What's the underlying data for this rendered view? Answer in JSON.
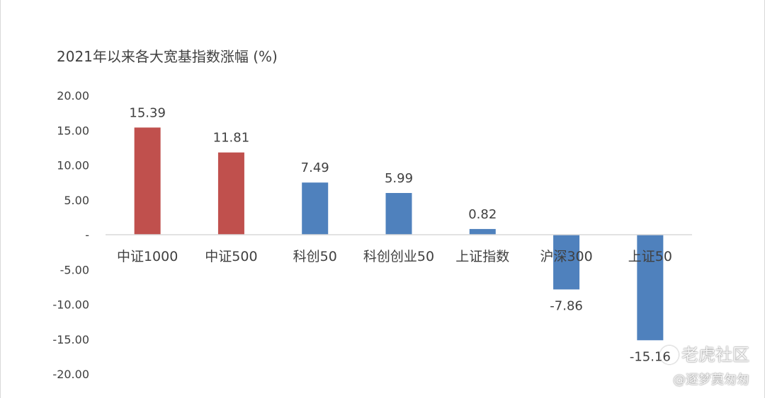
{
  "chart_data": {
    "type": "bar",
    "title": "2021年以来各大宽基指数涨幅 (%)",
    "categories": [
      "中证1000",
      "中证500",
      "科创50",
      "科创创业50",
      "上证指数",
      "沪深300",
      "上证50"
    ],
    "values": [
      15.39,
      11.81,
      7.49,
      5.99,
      0.82,
      -7.86,
      -15.16
    ],
    "value_labels": [
      "15.39",
      "11.81",
      "7.49",
      "5.99",
      "0.82",
      "-7.86",
      "-15.16"
    ],
    "bar_colors": [
      "#c0504d",
      "#c0504d",
      "#4f81bd",
      "#4f81bd",
      "#4f81bd",
      "#4f81bd",
      "#4f81bd"
    ],
    "ylim": [
      -20,
      20
    ],
    "yticks": [
      20,
      15,
      10,
      5,
      0,
      -5,
      -10,
      -15,
      -20
    ],
    "ytick_labels": [
      "20.00",
      "15.00",
      "10.00",
      "5.00",
      "-",
      "-5.00",
      "-10.00",
      "-15.00",
      "-20.00"
    ],
    "xlabel": "",
    "ylabel": "",
    "grid": false,
    "legend": "none"
  },
  "watermark": {
    "brand": "老虎社区",
    "user": "@逐梦莫匆匆"
  },
  "colors": {
    "axis": "#d9d9d9",
    "text": "#404040"
  }
}
